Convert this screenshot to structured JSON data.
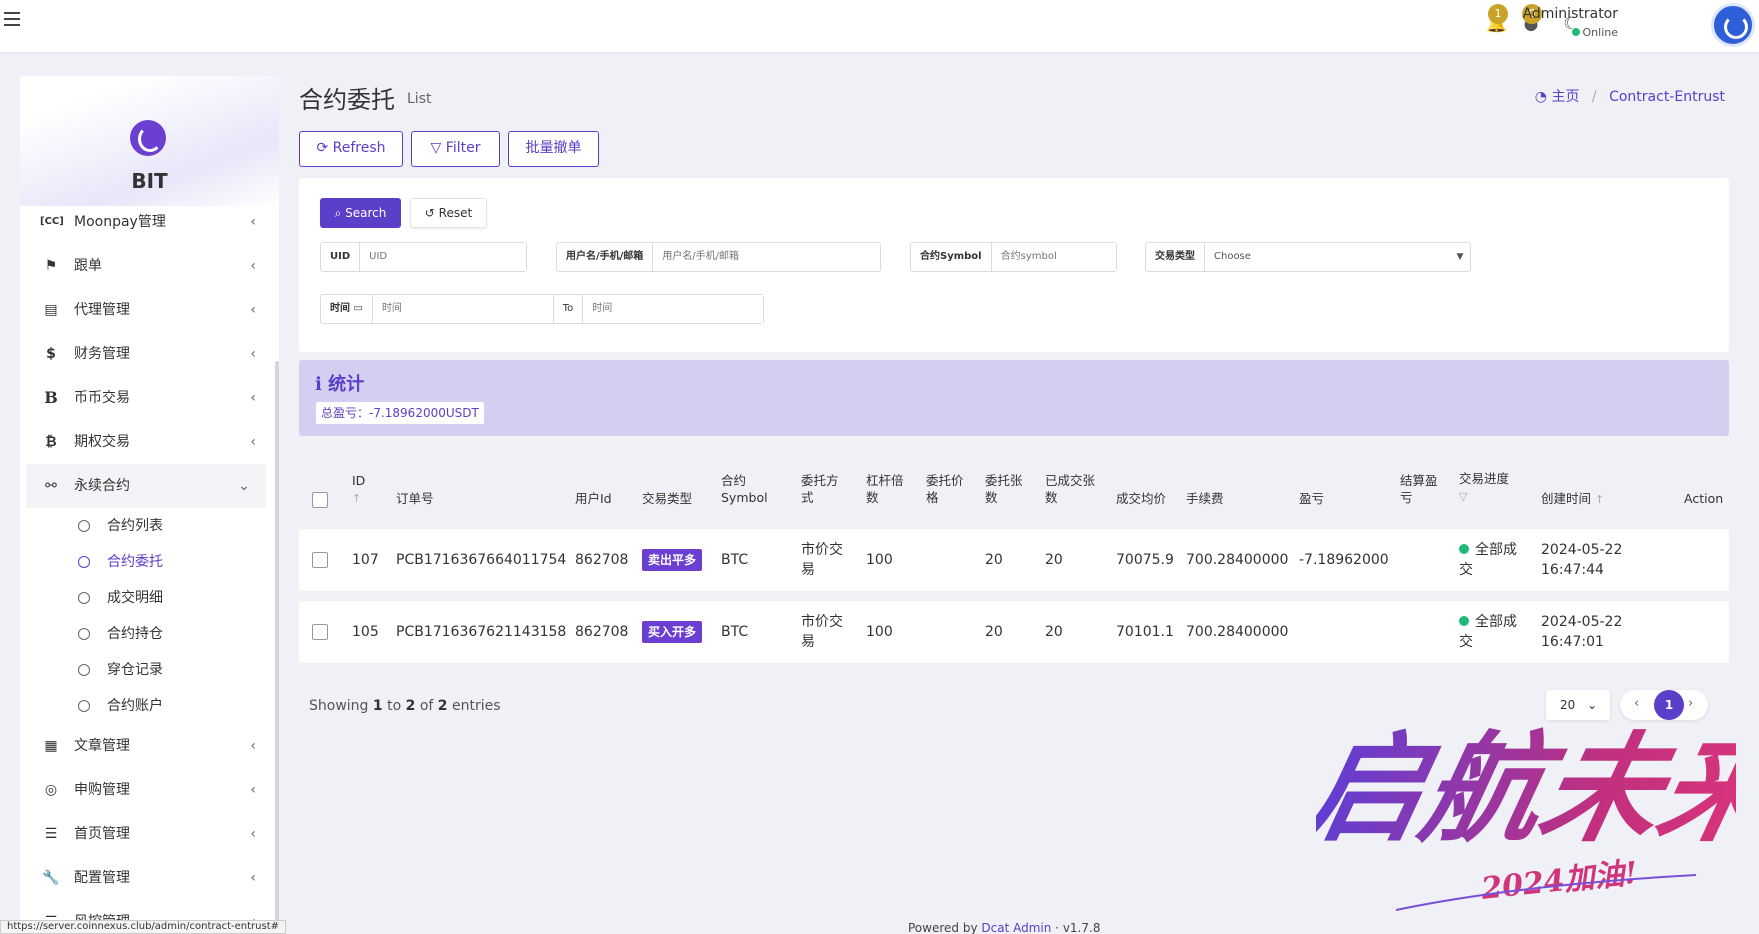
{
  "topbar": {
    "notif_count": "1",
    "msg_count": "0",
    "user_name": "Administrator",
    "user_status": "Online"
  },
  "sidebar": {
    "brand": "BIT",
    "items": [
      {
        "label": "Moonpay管理",
        "icon": "cc-icon"
      },
      {
        "label": "跟单",
        "icon": "flag-icon"
      },
      {
        "label": "代理管理",
        "icon": "id-card-icon"
      },
      {
        "label": "财务管理",
        "icon": "dollar-icon"
      },
      {
        "label": "币币交易",
        "icon": "bold-b-icon"
      },
      {
        "label": "期权交易",
        "icon": "bitcoin-icon"
      },
      {
        "label": "永续合约",
        "icon": "link-icon"
      }
    ],
    "subitems": [
      "合约列表",
      "合约委托",
      "成交明细",
      "合约持仓",
      "穿仓记录",
      "合约账户"
    ],
    "items_after": [
      {
        "label": "文章管理",
        "icon": "newspaper-icon"
      },
      {
        "label": "申购管理",
        "icon": "lifebuoy-icon"
      },
      {
        "label": "首页管理",
        "icon": "list-icon"
      },
      {
        "label": "配置管理",
        "icon": "wrench-icon"
      },
      {
        "label": "风控管理",
        "icon": "list-icon"
      }
    ]
  },
  "status_url": "https://server.coinnexus.club/admin/contract-entrust#",
  "page": {
    "title": "合约委托",
    "subtitle": "List",
    "breadcrumb_home": "主页",
    "breadcrumb_current": "Contract-Entrust"
  },
  "toolbar": {
    "refresh": "Refresh",
    "filter": "Filter",
    "batch_cancel": "批量撤单"
  },
  "filter": {
    "search": "Search",
    "reset": "Reset",
    "uid_label": "UID",
    "uid_placeholder": "UID",
    "user_label": "用户名/手机/邮箱",
    "user_placeholder": "用户名/手机/邮箱",
    "symbol_label": "合约Symbol",
    "symbol_placeholder": "合约symbol",
    "type_label": "交易类型",
    "type_value": "Choose",
    "time_label": "时间",
    "time_placeholder": "时间",
    "to_label": "To",
    "to_placeholder": "时间"
  },
  "stats": {
    "title": "统计",
    "total": "总盈亏：-7.18962000USDT"
  },
  "table": {
    "headers": {
      "id": "ID",
      "order_no": "订单号",
      "user_id": "用户Id",
      "trade_type": "交易类型",
      "symbol": "合约Symbol",
      "entrust_mode": "委托方式",
      "leverage": "杠杆倍数",
      "entrust_price": "委托价格",
      "entrust_qty": "委托张数",
      "filled_qty": "已成交张数",
      "avg_price": "成交均价",
      "fee": "手续费",
      "pnl": "盈亏",
      "settle_pnl": "结算盈亏",
      "progress": "交易进度",
      "created_at": "创建时间",
      "action": "Action"
    },
    "rows": [
      {
        "id": "107",
        "order_no": "PCB1716367664011754",
        "user_id": "862708",
        "trade_type": "卖出平多",
        "symbol": "BTC",
        "entrust_mode": "市价交易",
        "leverage": "100",
        "entrust_price": "",
        "entrust_qty": "20",
        "filled_qty": "20",
        "avg_price": "70075.9",
        "fee": "700.28400000",
        "pnl": "-7.18962000",
        "settle_pnl": "",
        "progress": "全部成交",
        "created_date": "2024-05-22",
        "created_time": "16:47:44"
      },
      {
        "id": "105",
        "order_no": "PCB1716367621143158",
        "user_id": "862708",
        "trade_type": "买入开多",
        "symbol": "BTC",
        "entrust_mode": "市价交易",
        "leverage": "100",
        "entrust_price": "",
        "entrust_qty": "20",
        "filled_qty": "20",
        "avg_price": "70101.1",
        "fee": "700.28400000",
        "pnl": "",
        "settle_pnl": "",
        "progress": "全部成交",
        "created_date": "2024-05-22",
        "created_time": "16:47:01"
      }
    ]
  },
  "pagination": {
    "showing_prefix": "Showing",
    "from": "1",
    "to_word": "to",
    "to": "2",
    "of_word": "of",
    "total": "2",
    "entries_word": "entries",
    "per_page": "20",
    "current_page": "1"
  },
  "footer": {
    "powered": "Powered by",
    "link": "Dcat Admin",
    "version": "v1.7.8"
  },
  "watermark": {
    "main": "启航未来",
    "sub": "2024加油!"
  },
  "colors": {
    "accent": "#5b3fc9",
    "success": "#21b978",
    "badge": "#c9a227"
  }
}
